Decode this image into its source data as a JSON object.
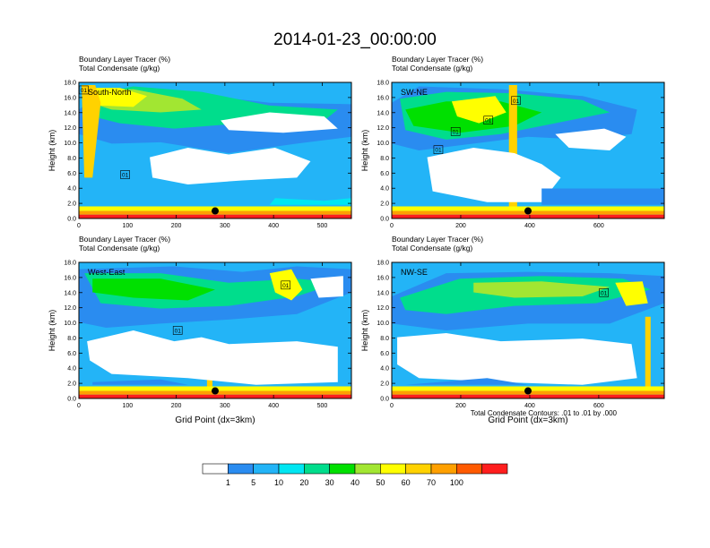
{
  "figure": {
    "title": "2014-01-23_00:00:00",
    "footnote": "Total Condensate Contours: .01 to .01 by .000",
    "xlabel": "Grid Point (dx=3km)"
  },
  "chart_data": [
    {
      "type": "heatmap",
      "panel_label": "South-North",
      "title_line1": "Boundary Layer Tracer   (%)",
      "title_line2": "Total Condensate   (g/kg)",
      "ylabel": "Height (km)",
      "xlabel": "",
      "xlim": [
        0,
        560
      ],
      "ylim": [
        0,
        18
      ],
      "xticks": [
        0,
        100,
        200,
        300,
        400,
        500
      ],
      "yticks": [
        0.0,
        2.0,
        4.0,
        6.0,
        8.0,
        10.0,
        12.0,
        14.0,
        16.0,
        18.0
      ],
      "contour_labels": [
        {
          "text": "01",
          "x": 10,
          "y": 17.0
        },
        {
          "text": "01",
          "x": 95,
          "y": 5.8
        }
      ],
      "marker": {
        "x": 280,
        "y": 1.0
      }
    },
    {
      "type": "heatmap",
      "panel_label": "SW-NE",
      "title_line1": "Boundary Layer Tracer   (%)",
      "title_line2": "Total Condensate   (g/kg)",
      "ylabel": "Height (km)",
      "xlabel": "",
      "xlim": [
        0,
        790
      ],
      "ylim": [
        0,
        18
      ],
      "xticks": [
        0,
        200,
        400,
        600
      ],
      "yticks": [
        0.0,
        2.0,
        4.0,
        6.0,
        8.0,
        10.0,
        12.0,
        14.0,
        16.0,
        18.0
      ],
      "contour_labels": [
        {
          "text": "01",
          "x": 360,
          "y": 15.6
        },
        {
          "text": "01",
          "x": 280,
          "y": 13.0
        },
        {
          "text": "01",
          "x": 185,
          "y": 11.5
        },
        {
          "text": "01",
          "x": 135,
          "y": 9.1
        }
      ],
      "marker": {
        "x": 395,
        "y": 1.0
      }
    },
    {
      "type": "heatmap",
      "panel_label": "West-East",
      "title_line1": "Boundary Layer Tracer   (%)",
      "title_line2": "Total Condensate   (g/kg)",
      "ylabel": "Height (km)",
      "xlabel": "Grid Point (dx=3km)",
      "xlim": [
        0,
        560
      ],
      "ylim": [
        0,
        18
      ],
      "xticks": [
        0,
        100,
        200,
        300,
        400,
        500
      ],
      "yticks": [
        0.0,
        2.0,
        4.0,
        6.0,
        8.0,
        10.0,
        12.0,
        14.0,
        16.0,
        18.0
      ],
      "contour_labels": [
        {
          "text": "01",
          "x": 425,
          "y": 15.0
        },
        {
          "text": "01",
          "x": 203,
          "y": 9.0
        }
      ],
      "marker": {
        "x": 280,
        "y": 1.0
      }
    },
    {
      "type": "heatmap",
      "panel_label": "NW-SE",
      "title_line1": "Boundary Layer Tracer   (%)",
      "title_line2": "Total Condensate   (g/kg)",
      "ylabel": "Height (km)",
      "xlabel": "Grid Point (dx=3km)",
      "xlim": [
        0,
        790
      ],
      "ylim": [
        0,
        18
      ],
      "xticks": [
        0,
        200,
        400,
        600
      ],
      "yticks": [
        0.0,
        2.0,
        4.0,
        6.0,
        8.0,
        10.0,
        12.0,
        14.0,
        16.0,
        18.0
      ],
      "contour_labels": [
        {
          "text": "01",
          "x": 615,
          "y": 14.0
        }
      ],
      "marker": {
        "x": 395,
        "y": 1.0
      }
    }
  ],
  "colorbar": {
    "ticks": [
      "1",
      "5",
      "10",
      "20",
      "30",
      "40",
      "50",
      "60",
      "70",
      "100"
    ],
    "colors": [
      "#ffffff",
      "#2a8cf0",
      "#23b4f7",
      "#00e6f2",
      "#00dd8c",
      "#00e000",
      "#a2e632",
      "#ffff00",
      "#ffd200",
      "#ffa000",
      "#ff5a00",
      "#ff1e1e"
    ]
  }
}
